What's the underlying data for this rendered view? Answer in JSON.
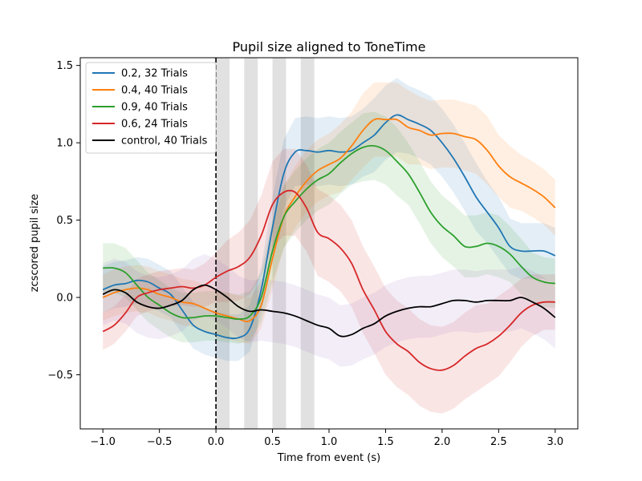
{
  "chart_data": {
    "type": "line",
    "title": "Pupil size aligned to ToneTime",
    "xlabel": "Time from event (s)",
    "ylabel": "zcscored pupil size",
    "xlim": [
      -1.2,
      3.2
    ],
    "ylim": [
      -0.85,
      1.55
    ],
    "xticks": [
      -1.0,
      -0.5,
      0.0,
      0.5,
      1.0,
      1.5,
      2.0,
      2.5,
      3.0
    ],
    "xtick_labels": [
      "−1.0",
      "−0.5",
      "0.0",
      "0.5",
      "1.0",
      "1.5",
      "2.0",
      "2.5",
      "3.0"
    ],
    "yticks": [
      -0.5,
      0.0,
      0.5,
      1.0,
      1.5
    ],
    "ytick_labels": [
      "−0.5",
      "0.0",
      "0.5",
      "1.0",
      "1.5"
    ],
    "grid": false,
    "legend_position": "top-left",
    "event_line_x": 0.0,
    "shaded_bands": [
      [
        0.0,
        0.12
      ],
      [
        0.25,
        0.37
      ],
      [
        0.5,
        0.62
      ],
      [
        0.75,
        0.87
      ]
    ],
    "series": [
      {
        "name": "0.2, 32 Trials",
        "color": "#1f77b4",
        "x": [
          -1.0,
          -0.9,
          -0.8,
          -0.7,
          -0.6,
          -0.5,
          -0.4,
          -0.3,
          -0.2,
          -0.1,
          0.0,
          0.1,
          0.2,
          0.3,
          0.4,
          0.5,
          0.6,
          0.7,
          0.8,
          0.9,
          1.0,
          1.1,
          1.2,
          1.3,
          1.4,
          1.5,
          1.6,
          1.7,
          1.8,
          1.9,
          2.0,
          2.1,
          2.2,
          2.3,
          2.4,
          2.5,
          2.6,
          2.7,
          2.8,
          2.9,
          3.0
        ],
        "y": [
          0.05,
          0.08,
          0.09,
          0.11,
          0.1,
          0.06,
          0.02,
          -0.08,
          -0.18,
          -0.22,
          -0.24,
          -0.26,
          -0.26,
          -0.2,
          0.05,
          0.45,
          0.8,
          0.94,
          0.95,
          0.94,
          0.95,
          0.94,
          0.95,
          1.0,
          1.05,
          1.13,
          1.18,
          1.15,
          1.12,
          1.08,
          1.0,
          0.9,
          0.78,
          0.65,
          0.55,
          0.45,
          0.33,
          0.3,
          0.3,
          0.3,
          0.27
        ],
        "band": [
          0.15,
          0.15,
          0.15,
          0.15,
          0.15,
          0.15,
          0.15,
          0.15,
          0.15,
          0.15,
          0.15,
          0.15,
          0.15,
          0.15,
          0.15,
          0.2,
          0.22,
          0.22,
          0.22,
          0.22,
          0.22,
          0.22,
          0.22,
          0.22,
          0.24,
          0.24,
          0.24,
          0.22,
          0.22,
          0.22,
          0.22,
          0.22,
          0.22,
          0.22,
          0.2,
          0.2,
          0.18,
          0.18,
          0.18,
          0.18,
          0.18
        ]
      },
      {
        "name": "0.4, 40 Trials",
        "color": "#ff7f0e",
        "x": [
          -1.0,
          -0.9,
          -0.8,
          -0.7,
          -0.6,
          -0.5,
          -0.4,
          -0.3,
          -0.2,
          -0.1,
          0.0,
          0.1,
          0.2,
          0.3,
          0.4,
          0.5,
          0.6,
          0.7,
          0.8,
          0.9,
          1.0,
          1.1,
          1.2,
          1.3,
          1.4,
          1.5,
          1.6,
          1.7,
          1.8,
          1.9,
          2.0,
          2.1,
          2.2,
          2.3,
          2.4,
          2.5,
          2.6,
          2.7,
          2.8,
          2.9,
          3.0
        ],
        "y": [
          0.0,
          0.03,
          0.05,
          0.06,
          0.05,
          0.02,
          0.0,
          -0.03,
          -0.04,
          -0.07,
          -0.1,
          -0.12,
          -0.14,
          -0.15,
          -0.05,
          0.25,
          0.52,
          0.65,
          0.75,
          0.82,
          0.86,
          0.9,
          0.98,
          1.08,
          1.15,
          1.15,
          1.15,
          1.1,
          1.08,
          1.05,
          1.06,
          1.06,
          1.04,
          1.02,
          0.95,
          0.85,
          0.78,
          0.74,
          0.7,
          0.65,
          0.58
        ],
        "band": [
          0.15,
          0.15,
          0.15,
          0.15,
          0.15,
          0.15,
          0.15,
          0.15,
          0.15,
          0.15,
          0.15,
          0.15,
          0.15,
          0.15,
          0.15,
          0.2,
          0.2,
          0.2,
          0.2,
          0.2,
          0.2,
          0.22,
          0.22,
          0.24,
          0.24,
          0.24,
          0.24,
          0.24,
          0.22,
          0.22,
          0.22,
          0.22,
          0.22,
          0.22,
          0.22,
          0.2,
          0.2,
          0.18,
          0.18,
          0.18,
          0.18
        ]
      },
      {
        "name": "0.9, 40 Trials",
        "color": "#2ca02c",
        "x": [
          -1.0,
          -0.9,
          -0.8,
          -0.7,
          -0.6,
          -0.5,
          -0.4,
          -0.3,
          -0.2,
          -0.1,
          0.0,
          0.1,
          0.2,
          0.3,
          0.4,
          0.5,
          0.6,
          0.7,
          0.8,
          0.9,
          1.0,
          1.1,
          1.2,
          1.3,
          1.4,
          1.5,
          1.6,
          1.7,
          1.8,
          1.9,
          2.0,
          2.1,
          2.2,
          2.3,
          2.4,
          2.5,
          2.6,
          2.7,
          2.8,
          2.9,
          3.0
        ],
        "y": [
          0.19,
          0.19,
          0.16,
          0.08,
          0.0,
          -0.05,
          -0.1,
          -0.13,
          -0.13,
          -0.12,
          -0.12,
          -0.13,
          -0.14,
          -0.12,
          0.0,
          0.3,
          0.52,
          0.62,
          0.7,
          0.76,
          0.8,
          0.87,
          0.93,
          0.97,
          0.98,
          0.95,
          0.88,
          0.8,
          0.68,
          0.55,
          0.46,
          0.4,
          0.33,
          0.33,
          0.35,
          0.33,
          0.28,
          0.2,
          0.13,
          0.1,
          0.09
        ],
        "band": [
          0.16,
          0.16,
          0.16,
          0.16,
          0.16,
          0.16,
          0.16,
          0.16,
          0.16,
          0.16,
          0.16,
          0.16,
          0.16,
          0.16,
          0.16,
          0.2,
          0.2,
          0.2,
          0.2,
          0.2,
          0.2,
          0.2,
          0.2,
          0.22,
          0.22,
          0.22,
          0.22,
          0.2,
          0.2,
          0.2,
          0.2,
          0.2,
          0.2,
          0.2,
          0.2,
          0.2,
          0.18,
          0.18,
          0.16,
          0.16,
          0.16
        ]
      },
      {
        "name": "0.6, 24 Trials",
        "color": "#d62728",
        "x": [
          -1.0,
          -0.9,
          -0.8,
          -0.7,
          -0.6,
          -0.5,
          -0.4,
          -0.3,
          -0.2,
          -0.1,
          0.0,
          0.1,
          0.2,
          0.3,
          0.4,
          0.5,
          0.6,
          0.7,
          0.8,
          0.9,
          1.0,
          1.1,
          1.2,
          1.3,
          1.4,
          1.5,
          1.6,
          1.7,
          1.8,
          1.9,
          2.0,
          2.1,
          2.2,
          2.3,
          2.4,
          2.5,
          2.6,
          2.7,
          2.8,
          2.9,
          3.0
        ],
        "y": [
          -0.22,
          -0.18,
          -0.1,
          0.0,
          0.03,
          0.05,
          0.06,
          0.07,
          0.06,
          0.08,
          0.13,
          0.17,
          0.2,
          0.26,
          0.4,
          0.6,
          0.68,
          0.68,
          0.58,
          0.42,
          0.38,
          0.32,
          0.22,
          0.05,
          -0.08,
          -0.22,
          -0.3,
          -0.35,
          -0.42,
          -0.46,
          -0.47,
          -0.44,
          -0.38,
          -0.33,
          -0.3,
          -0.25,
          -0.18,
          -0.1,
          -0.05,
          -0.03,
          -0.03
        ],
        "band": [
          0.12,
          0.12,
          0.12,
          0.12,
          0.12,
          0.12,
          0.12,
          0.12,
          0.12,
          0.14,
          0.16,
          0.2,
          0.22,
          0.24,
          0.26,
          0.28,
          0.28,
          0.28,
          0.28,
          0.28,
          0.28,
          0.28,
          0.28,
          0.28,
          0.28,
          0.28,
          0.28,
          0.28,
          0.28,
          0.28,
          0.28,
          0.28,
          0.28,
          0.28,
          0.26,
          0.26,
          0.24,
          0.22,
          0.2,
          0.18,
          0.18
        ]
      },
      {
        "name": "control, 40 Trials",
        "color": "#000000",
        "x": [
          -1.0,
          -0.9,
          -0.8,
          -0.7,
          -0.6,
          -0.5,
          -0.4,
          -0.3,
          -0.2,
          -0.1,
          0.0,
          0.1,
          0.2,
          0.3,
          0.4,
          0.5,
          0.6,
          0.7,
          0.8,
          0.9,
          1.0,
          1.1,
          1.2,
          1.3,
          1.4,
          1.5,
          1.6,
          1.7,
          1.8,
          1.9,
          2.0,
          2.1,
          2.2,
          2.3,
          2.4,
          2.5,
          2.6,
          2.7,
          2.8,
          2.9,
          3.0
        ],
        "y": [
          0.02,
          0.05,
          0.03,
          -0.03,
          -0.06,
          -0.07,
          -0.05,
          -0.02,
          0.05,
          0.08,
          0.05,
          0.0,
          -0.06,
          -0.09,
          -0.08,
          -0.09,
          -0.1,
          -0.12,
          -0.15,
          -0.18,
          -0.2,
          -0.25,
          -0.24,
          -0.2,
          -0.17,
          -0.12,
          -0.09,
          -0.07,
          -0.06,
          -0.06,
          -0.04,
          -0.02,
          -0.02,
          -0.03,
          -0.02,
          -0.02,
          -0.02,
          0.0,
          -0.03,
          -0.07,
          -0.13
        ],
        "band": [
          0.2,
          0.2,
          0.2,
          0.2,
          0.2,
          0.2,
          0.2,
          0.2,
          0.2,
          0.2,
          0.2,
          0.2,
          0.2,
          0.2,
          0.2,
          0.2,
          0.2,
          0.2,
          0.2,
          0.2,
          0.2,
          0.2,
          0.2,
          0.2,
          0.2,
          0.2,
          0.2,
          0.2,
          0.2,
          0.2,
          0.2,
          0.2,
          0.2,
          0.2,
          0.2,
          0.2,
          0.2,
          0.2,
          0.2,
          0.2,
          0.2
        ]
      }
    ]
  }
}
